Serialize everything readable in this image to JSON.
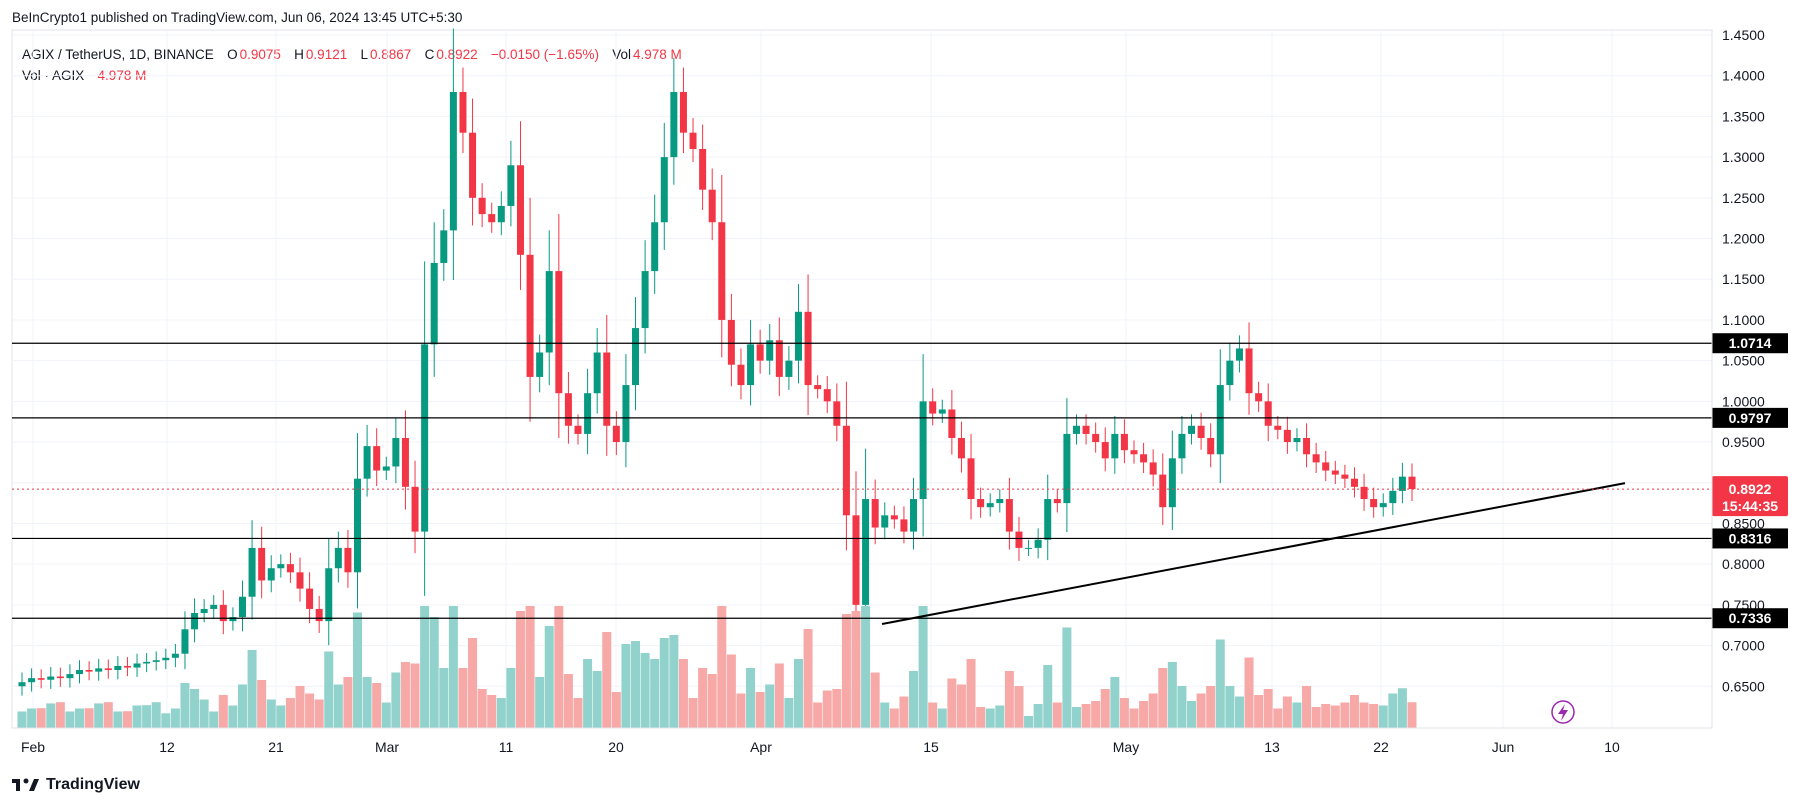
{
  "header": {
    "publisher_line": "BeInCrypto1 published on TradingView.com, Jun 06, 2024 13:45 UTC+5:30"
  },
  "legend": {
    "symbol": "AGIX / TetherUS, 1D, BINANCE",
    "open_label": "O",
    "open": "0.9075",
    "high_label": "H",
    "high": "0.9121",
    "low_label": "L",
    "low": "0.8867",
    "close_label": "C",
    "close": "0.8922",
    "change": "−0.0150 (−1.65%)",
    "vol_label": "Vol",
    "vol": "4.978 M",
    "vol_row_label": "Vol · AGIX",
    "vol_row_value": "4.978 M"
  },
  "footer": {
    "brand": "TradingView"
  },
  "colors": {
    "up": "#089981",
    "down": "#f23645",
    "vol_up": "#92d2cc",
    "vol_down": "#f7a9a7",
    "level": "#000000",
    "trendline": "#000000"
  },
  "chart_data": {
    "type": "candlestick",
    "title": "AGIX / TetherUS, 1D, BINANCE",
    "y_ticks": [
      "1.4500",
      "1.4000",
      "1.3500",
      "1.3000",
      "1.2500",
      "1.2000",
      "1.1500",
      "1.1000",
      "1.0500",
      "1.0000",
      "0.9500",
      "0.9000",
      "0.8500",
      "0.8000",
      "0.7500",
      "0.7000",
      "0.6500"
    ],
    "x_ticks": [
      "Feb",
      "12",
      "21",
      "Mar",
      "11",
      "20",
      "Apr",
      "15",
      "May",
      "13",
      "22",
      "Jun",
      "10"
    ],
    "ylim": [
      0.6,
      1.45
    ],
    "levels": [
      1.0714,
      0.9797,
      0.8316,
      0.7336
    ],
    "level_labels": [
      "1.0714",
      "0.9797",
      "0.8316",
      "0.7336"
    ],
    "current_price": "0.8922",
    "countdown": "15:44:35",
    "trendline": {
      "from": [
        0.7265
      ],
      "to": [
        0.8995
      ]
    },
    "candles": [
      {
        "o": 0.9075,
        "h": 0.9121,
        "l": 0.8867,
        "c": 0.8922
      }
    ],
    "volume_series": "Vol · AGIX",
    "grid": true
  }
}
